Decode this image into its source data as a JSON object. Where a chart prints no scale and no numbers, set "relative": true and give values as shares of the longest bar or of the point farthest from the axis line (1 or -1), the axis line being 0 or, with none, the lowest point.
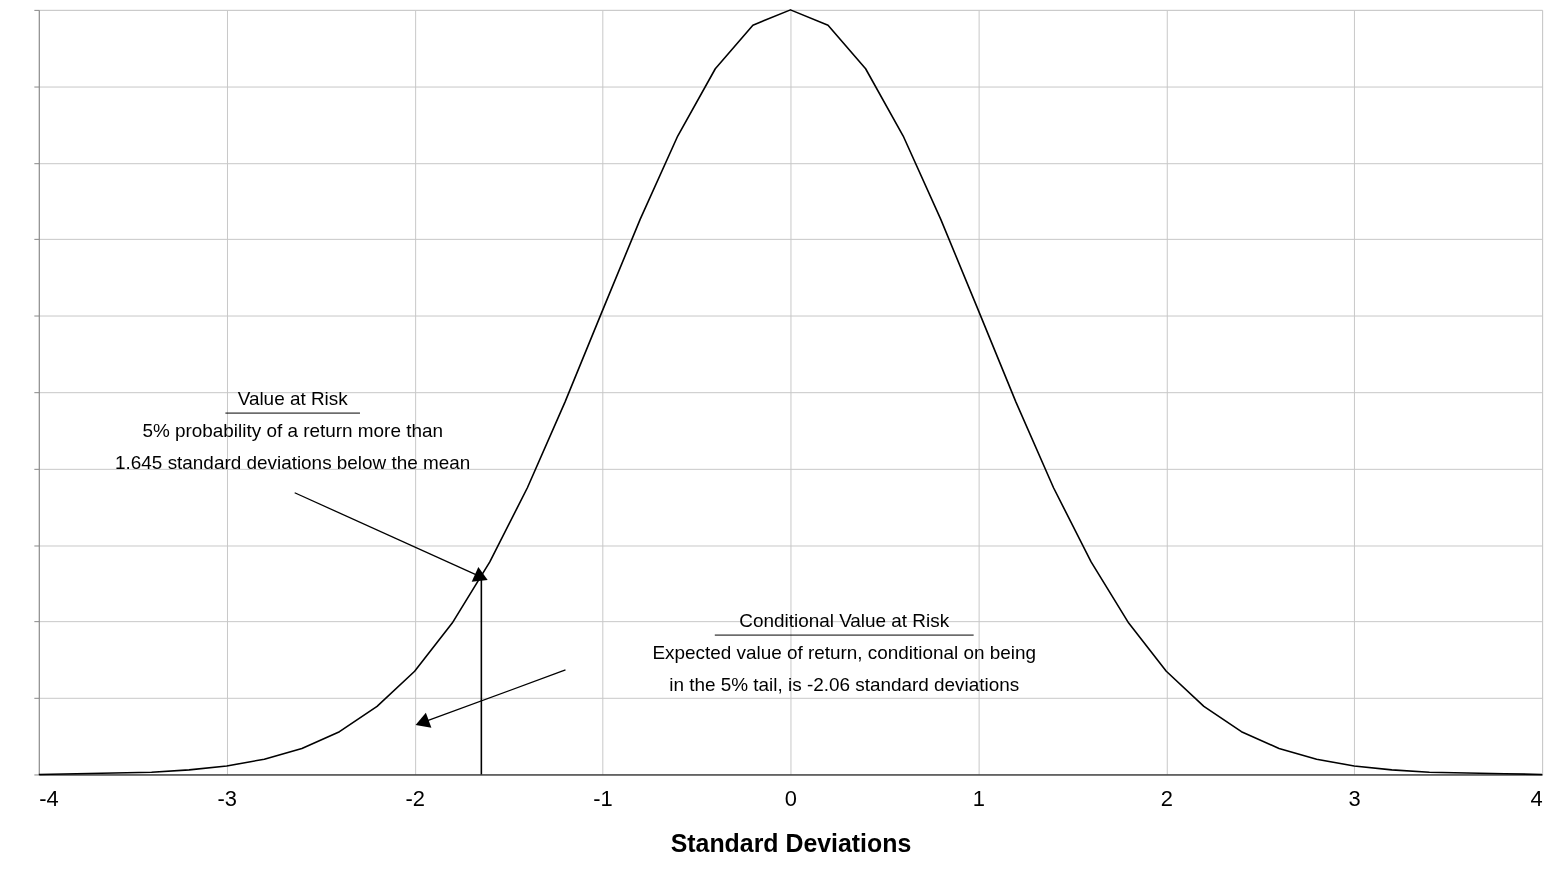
{
  "chart_data": {
    "type": "line",
    "xlabel": "Standard Deviations",
    "relative": true,
    "x": [
      -4,
      -3.8,
      -3.6,
      -3.4,
      -3.2,
      -3,
      -2.8,
      -2.6,
      -2.4,
      -2.2,
      -2,
      -1.8,
      -1.6,
      -1.4,
      -1.2,
      -1,
      -0.8,
      -0.6,
      -0.4,
      -0.2,
      0,
      0.2,
      0.4,
      0.6,
      0.8,
      1,
      1.2,
      1.4,
      1.6,
      1.8,
      2,
      2.2,
      2.4,
      2.6,
      2.8,
      3,
      3.2,
      3.4,
      3.6,
      3.8,
      4
    ],
    "series": [
      {
        "color": "#000000",
        "values": [
          0,
          0.001,
          0.002,
          0.003,
          0.006,
          0.011,
          0.02,
          0.034,
          0.056,
          0.089,
          0.135,
          0.198,
          0.278,
          0.375,
          0.487,
          0.607,
          0.726,
          0.835,
          0.923,
          0.98,
          1,
          0.98,
          0.923,
          0.835,
          0.726,
          0.607,
          0.487,
          0.375,
          0.278,
          0.198,
          0.135,
          0.089,
          0.056,
          0.034,
          0.02,
          0.011,
          0.006,
          0.003,
          0.002,
          0.001,
          0
        ]
      },
      {
        "type": "line",
        "color": "#000000",
        "x": [
          -1.645,
          -1.645
        ],
        "values": [
          0,
          0.258
        ]
      }
    ],
    "xlim": [
      -4,
      4
    ],
    "xticks": [
      -4,
      -3,
      -2,
      -1,
      0,
      1,
      2,
      3,
      4
    ],
    "grid": true,
    "annotations": [
      {
        "text": "Value at Risk\n5% probability of a return more than\n1.645 standard deviations below the mean",
        "x": -1.645,
        "y": 0.258
      },
      "Conditional Value at Risk\nExpected value of return, conditional on being\nin the 5% tail, is -2.06 standard deviations"
    ]
  }
}
